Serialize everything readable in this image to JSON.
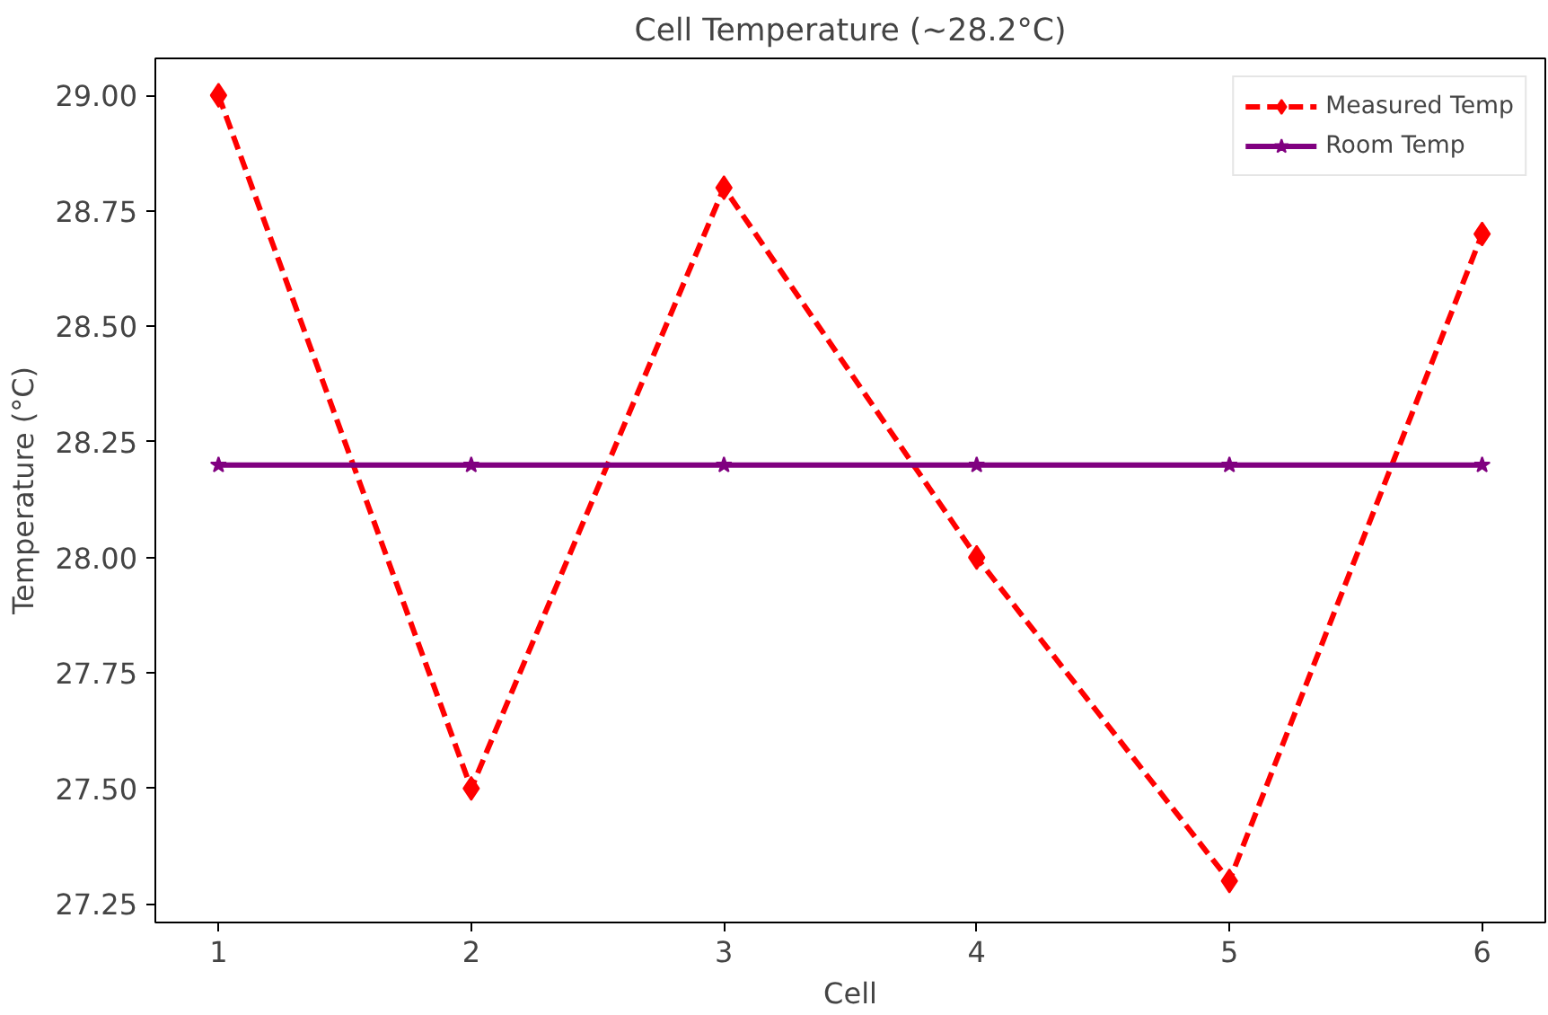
{
  "chart_data": {
    "type": "line",
    "title": "Cell Temperature (~28.2°C)",
    "xlabel": "Cell",
    "ylabel": "Temperature (°C)",
    "x": [
      1,
      2,
      3,
      4,
      5,
      6
    ],
    "series": [
      {
        "name": "Measured Temp",
        "color": "#ff0000",
        "values": [
          29.0,
          27.5,
          28.8,
          28.0,
          27.3,
          28.7
        ],
        "marker": "diamond",
        "line_style": "dashed"
      },
      {
        "name": "Room Temp",
        "color": "#800080",
        "values": [
          28.2,
          28.2,
          28.2,
          28.2,
          28.2,
          28.2
        ],
        "marker": "star",
        "line_style": "solid"
      }
    ],
    "xlim": [
      0.75,
      6.25
    ],
    "xticks": [
      1,
      2,
      3,
      4,
      5,
      6
    ],
    "ylim": [
      27.21,
      29.08
    ],
    "yticks": [
      {
        "value": 27.25,
        "label": "27.25"
      },
      {
        "value": 27.5,
        "label": "27.50"
      },
      {
        "value": 27.75,
        "label": "27.75"
      },
      {
        "value": 28.0,
        "label": "28.00"
      },
      {
        "value": 28.25,
        "label": "28.25"
      },
      {
        "value": 28.5,
        "label": "28.50"
      },
      {
        "value": 28.75,
        "label": "28.75"
      },
      {
        "value": 29.0,
        "label": "29.00"
      }
    ],
    "grid": false,
    "legend": "top right"
  }
}
